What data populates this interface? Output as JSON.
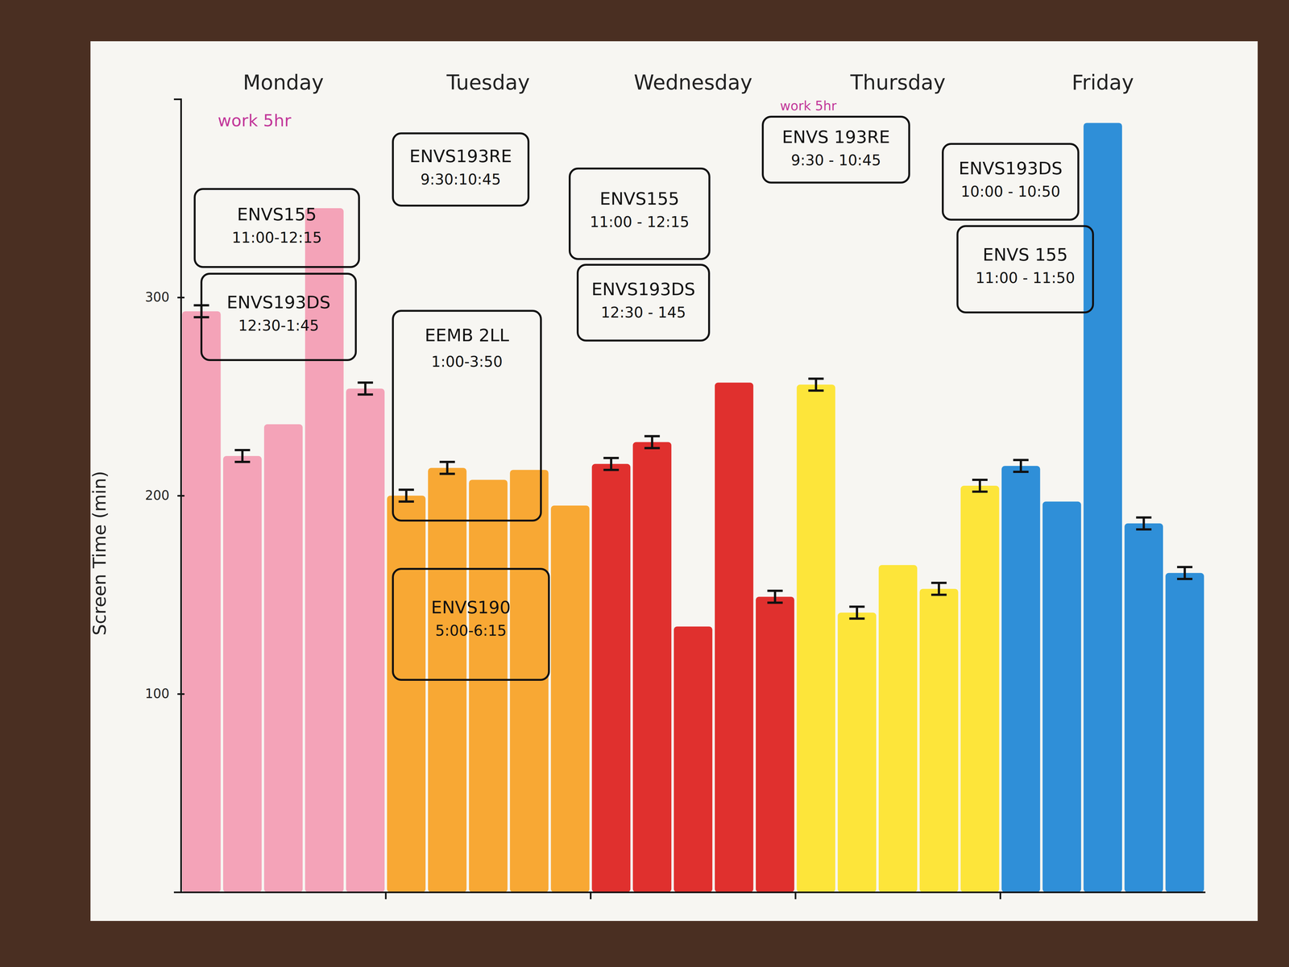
{
  "chart_data": {
    "type": "bar",
    "ylabel": "Screen Time (min)",
    "categories": [
      "Monday",
      "Tuesday",
      "Wednesday",
      "Thursday",
      "Friday"
    ],
    "colors": [
      "#f4a3b8",
      "#f8a834",
      "#e0302e",
      "#fde53a",
      "#2f8fd8"
    ],
    "series": [
      {
        "values": [
          293,
          200,
          216,
          256,
          215
        ],
        "errors": [
          3,
          3,
          3,
          3,
          3
        ]
      },
      {
        "values": [
          220,
          214,
          227,
          141,
          197
        ],
        "errors": [
          3,
          3,
          3,
          3,
          null
        ]
      },
      {
        "values": [
          236,
          208,
          134,
          165,
          388
        ],
        "errors": [
          null,
          null,
          null,
          null,
          null
        ]
      },
      {
        "values": [
          345,
          213,
          257,
          153,
          186
        ],
        "errors": [
          null,
          null,
          null,
          3,
          3
        ]
      },
      {
        "values": [
          254,
          195,
          149,
          205,
          161
        ],
        "errors": [
          3,
          null,
          3,
          3,
          3
        ]
      }
    ],
    "ylim": [
      0,
      400
    ],
    "yticks": [
      100,
      200,
      300
    ],
    "annotations": [
      {
        "note": "work 5hr",
        "boxes": [
          {
            "course": "ENVS155",
            "time": "11:00-12:15"
          },
          {
            "course": "ENVS193DS",
            "time": "12:30-1:45"
          }
        ]
      },
      {
        "boxes": [
          {
            "course": "ENVS193RE",
            "time": "9:30:10:45"
          },
          {
            "course": "EEMB 2LL",
            "time": "1:00-3:50"
          },
          {
            "course": "ENVS190",
            "time": "5:00-6:15"
          }
        ]
      },
      {
        "boxes": [
          {
            "course": "ENVS155",
            "time": "11:00 - 12:15"
          },
          {
            "course": "ENVS193DS",
            "time": "12:30 - 145"
          }
        ]
      },
      {
        "note": "work 5hr",
        "boxes": [
          {
            "course": "ENVS 193RE",
            "time": "9:30 - 10:45"
          }
        ]
      },
      {
        "boxes": [
          {
            "course": "ENVS193DS",
            "time": "10:00 - 10:50"
          },
          {
            "course": "ENVS 155",
            "time": "11:00 - 11:50"
          }
        ]
      }
    ]
  }
}
